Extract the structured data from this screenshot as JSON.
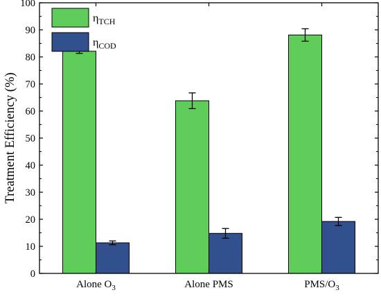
{
  "chart_data": {
    "type": "bar",
    "ylabel": "Treatment Efficiency (%)",
    "xlabel": "",
    "ylim": [
      0,
      100
    ],
    "yticks": [
      0,
      10,
      20,
      30,
      40,
      50,
      60,
      70,
      80,
      90,
      100
    ],
    "grid": false,
    "legend_position": "top-left",
    "categories": [
      {
        "base": "Alone O",
        "sub": "3"
      },
      {
        "base": "Alone PMS",
        "sub": ""
      },
      {
        "base": "PMS/O",
        "sub": "3"
      }
    ],
    "series": [
      {
        "symbol": "η",
        "sub": "TCH",
        "color": "#5fcd5a",
        "values": [
          82.1,
          63.8,
          88.1
        ],
        "errors": [
          0.8,
          2.9,
          2.3
        ]
      },
      {
        "symbol": "η",
        "sub": "COD",
        "color": "#33508e",
        "values": [
          11.3,
          14.8,
          19.2
        ],
        "errors": [
          0.7,
          1.8,
          1.5
        ]
      }
    ]
  }
}
